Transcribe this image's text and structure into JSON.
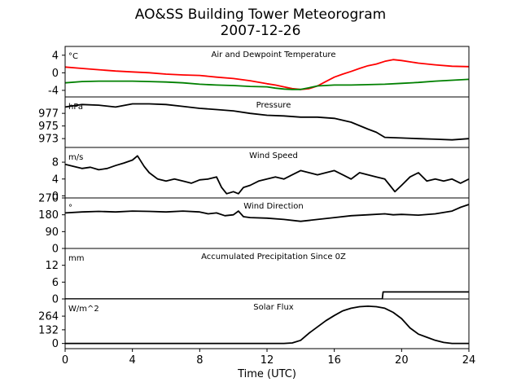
{
  "title_line1": "AO&SS Building Tower Meteorogram",
  "title_line2": "2007-12-26",
  "chart_data": {
    "type": "line",
    "xlabel": "Time (UTC)",
    "xlim": [
      0,
      24
    ],
    "xticks": [
      0,
      4,
      8,
      12,
      16,
      20,
      24
    ],
    "panels": [
      {
        "id": "temperature",
        "title": "Air and Dewpoint Temperature",
        "unit": "°C",
        "ylim": [
          -5.5,
          6
        ],
        "yticks": [
          -4,
          0,
          4
        ],
        "series": [
          {
            "color": "#ff0000",
            "x": [
              0,
              1,
              2,
              3,
              4,
              5,
              6,
              7,
              8,
              9,
              10,
              11,
              12,
              12.5,
              13,
              13.5,
              14,
              14.5,
              15,
              15.5,
              16,
              16.5,
              17,
              17.5,
              18,
              18.5,
              19,
              19.5,
              20,
              21,
              22,
              23,
              24
            ],
            "values": [
              1.3,
              1.0,
              0.7,
              0.4,
              0.2,
              0.0,
              -0.3,
              -0.5,
              -0.6,
              -1.0,
              -1.3,
              -1.8,
              -2.5,
              -2.8,
              -3.2,
              -3.6,
              -3.8,
              -3.6,
              -3.0,
              -2.0,
              -1.0,
              -0.3,
              0.3,
              1.0,
              1.6,
              2.0,
              2.6,
              3.0,
              2.8,
              2.2,
              1.8,
              1.5,
              1.4
            ]
          },
          {
            "color": "#008000",
            "x": [
              0,
              1,
              2,
              3,
              4,
              5,
              6,
              7,
              8,
              9,
              10,
              11,
              12,
              12.5,
              13,
              13.5,
              14,
              14.5,
              15,
              16,
              17,
              18,
              19,
              20,
              21,
              22,
              23,
              24
            ],
            "values": [
              -2.3,
              -2.0,
              -1.9,
              -1.9,
              -1.9,
              -2.0,
              -2.1,
              -2.3,
              -2.6,
              -2.8,
              -2.9,
              -3.1,
              -3.2,
              -3.5,
              -3.7,
              -3.8,
              -3.8,
              -3.4,
              -3.0,
              -2.8,
              -2.8,
              -2.7,
              -2.6,
              -2.4,
              -2.2,
              -1.9,
              -1.7,
              -1.5
            ]
          }
        ]
      },
      {
        "id": "pressure",
        "title": "Pressure",
        "unit": "hPa",
        "ylim": [
          971.6,
          979.6
        ],
        "yticks": [
          973,
          975,
          977
        ],
        "series": [
          {
            "color": "#000000",
            "x": [
              0,
              0.5,
              1,
              2,
              3,
              4,
              5,
              6,
              7,
              8,
              9,
              10,
              11,
              12,
              13,
              14,
              15,
              16,
              17,
              18,
              18.5,
              19,
              20,
              21,
              22,
              23,
              24
            ],
            "values": [
              978.0,
              978.2,
              978.4,
              978.3,
              978.0,
              978.5,
              978.5,
              978.4,
              978.1,
              977.8,
              977.6,
              977.4,
              977.0,
              976.7,
              976.6,
              976.4,
              976.4,
              976.2,
              975.6,
              974.5,
              974.0,
              973.2,
              973.1,
              973.0,
              972.9,
              972.8,
              973.0
            ]
          }
        ]
      },
      {
        "id": "wind_speed",
        "title": "Wind Speed",
        "unit": "m/s",
        "ylim": [
          -0.5,
          11.5
        ],
        "yticks": [
          0,
          4,
          8
        ],
        "series": [
          {
            "color": "#000000",
            "x": [
              0,
              0.5,
              1,
              1.5,
              2,
              2.5,
              3,
              3.5,
              4,
              4.3,
              4.7,
              5,
              5.5,
              6,
              6.5,
              7,
              7.5,
              8,
              8.5,
              9,
              9.3,
              9.6,
              10,
              10.3,
              10.6,
              11,
              11.5,
              12,
              12.5,
              13,
              13.5,
              14,
              14.5,
              15,
              15.5,
              16,
              16.5,
              17,
              17.5,
              18,
              18.5,
              19,
              19.3,
              19.6,
              20,
              20.5,
              21,
              21.5,
              22,
              22.5,
              23,
              23.5,
              24
            ],
            "values": [
              7.5,
              7.0,
              6.5,
              6.8,
              6.2,
              6.5,
              7.2,
              7.8,
              8.5,
              9.5,
              7.0,
              5.5,
              4.0,
              3.5,
              4.0,
              3.5,
              3.0,
              3.8,
              4.0,
              4.5,
              2.0,
              0.5,
              1.0,
              0.5,
              2.0,
              2.5,
              3.5,
              4.0,
              4.5,
              4.0,
              5.0,
              6.0,
              5.5,
              5.0,
              5.5,
              6.0,
              5.0,
              4.0,
              5.5,
              5.0,
              4.5,
              4.0,
              2.5,
              1.0,
              2.5,
              4.5,
              5.5,
              3.5,
              4.0,
              3.5,
              4.0,
              3.0,
              4.0
            ]
          }
        ]
      },
      {
        "id": "wind_direction",
        "title": "Wind Direction",
        "unit": "°",
        "ylim": [
          0,
          270
        ],
        "yticks": [
          0,
          90,
          180,
          270
        ],
        "series": [
          {
            "color": "#000000",
            "x": [
              0,
              1,
              2,
              3,
              4,
              5,
              6,
              7,
              8,
              8.5,
              9,
              9.5,
              10,
              10.3,
              10.6,
              11,
              12,
              13,
              14,
              15,
              16,
              17,
              18,
              19,
              19.5,
              20,
              21,
              22,
              23,
              23.5,
              24
            ],
            "values": [
              190,
              195,
              198,
              195,
              200,
              198,
              195,
              200,
              195,
              185,
              190,
              175,
              180,
              200,
              170,
              165,
              162,
              155,
              145,
              155,
              165,
              175,
              180,
              185,
              180,
              182,
              178,
              185,
              200,
              220,
              235
            ]
          }
        ]
      },
      {
        "id": "precipitation",
        "title": "Accumulated Precipitation Since 0Z",
        "unit": "mm",
        "ylim": [
          0,
          18
        ],
        "yticks": [
          0,
          6,
          12
        ],
        "series": [
          {
            "color": "#000000",
            "x": [
              0,
              18.85,
              18.9,
              24
            ],
            "values": [
              0,
              0,
              2.5,
              2.5
            ]
          }
        ]
      },
      {
        "id": "solar",
        "title": "Solar Flux",
        "unit": "W/m^2",
        "ylim": [
          -50,
          430
        ],
        "yticks": [
          0,
          132,
          264
        ],
        "series": [
          {
            "color": "#000000",
            "x": [
              0,
              13,
              13.5,
              14,
              14.5,
              15,
              15.5,
              16,
              16.5,
              17,
              17.5,
              18,
              18.5,
              19,
              19.5,
              20,
              20.5,
              21,
              21.5,
              22,
              22.5,
              23,
              24
            ],
            "values": [
              0,
              0,
              5,
              30,
              100,
              160,
              220,
              270,
              315,
              340,
              355,
              360,
              355,
              340,
              300,
              240,
              150,
              90,
              60,
              30,
              10,
              0,
              0
            ]
          }
        ]
      }
    ]
  }
}
